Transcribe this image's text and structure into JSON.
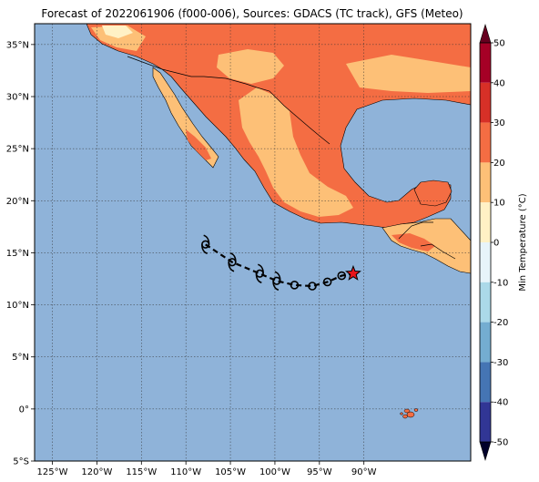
{
  "title": "Forecast of 2022061906 (f000-006), Sources: GDACS (TC track), GFS (Meteo)",
  "map": {
    "lon_range": [
      -127,
      -78
    ],
    "lat_range": [
      -5,
      37
    ],
    "x_ticks": [
      {
        "lon": -125,
        "label": "125°W"
      },
      {
        "lon": -120,
        "label": "120°W"
      },
      {
        "lon": -115,
        "label": "115°W"
      },
      {
        "lon": -110,
        "label": "110°W"
      },
      {
        "lon": -105,
        "label": "105°W"
      },
      {
        "lon": -100,
        "label": "100°W"
      },
      {
        "lon": -95,
        "label": "95°W"
      },
      {
        "lon": -90,
        "label": "90°W"
      }
    ],
    "y_ticks": [
      {
        "lat": 35,
        "label": "35°N"
      },
      {
        "lat": 30,
        "label": "30°N"
      },
      {
        "lat": 25,
        "label": "25°N"
      },
      {
        "lat": 20,
        "label": "20°N"
      },
      {
        "lat": 15,
        "label": "15°N"
      },
      {
        "lat": 10,
        "label": "10°N"
      },
      {
        "lat": 5,
        "label": "5°N"
      },
      {
        "lat": 0,
        "label": "0°"
      },
      {
        "lat": -5,
        "label": "5°S"
      }
    ],
    "grid": true,
    "ocean_color": "#8fb3d9",
    "land_colors": {
      "min_temp_10_20": "#fdc077",
      "min_temp_20_30": "#f46d43",
      "min_temp_0_10": "#fff1c5"
    }
  },
  "track": [
    {
      "lon": -107.8,
      "lat": 15.8,
      "symbol": "tropical-storm-icon"
    },
    {
      "lon": -104.8,
      "lat": 14.1,
      "symbol": "tropical-storm-icon"
    },
    {
      "lon": -101.7,
      "lat": 13.0,
      "symbol": "tropical-storm-icon"
    },
    {
      "lon": -99.8,
      "lat": 12.3,
      "symbol": "tropical-storm-icon"
    },
    {
      "lon": -97.8,
      "lat": 11.9,
      "symbol": "depression-icon"
    },
    {
      "lon": -95.8,
      "lat": 11.8,
      "symbol": "depression-icon"
    },
    {
      "lon": -94.1,
      "lat": 12.2,
      "symbol": "depression-icon"
    },
    {
      "lon": -92.5,
      "lat": 12.8,
      "symbol": "depression-icon"
    },
    {
      "lon": -91.2,
      "lat": 13.0,
      "symbol": "current-position-star-icon"
    }
  ],
  "colorbar": {
    "label": "Min Temperature (°C)",
    "min": -50,
    "max": 50,
    "ticks": [
      "50",
      "40",
      "30",
      "20",
      "10",
      "0",
      "-10",
      "-20",
      "-30",
      "-40",
      "-50"
    ],
    "tick_values": [
      50,
      40,
      30,
      20,
      10,
      0,
      -10,
      -20,
      -30,
      -40,
      -50
    ],
    "bands": [
      {
        "from": 40,
        "to": 50,
        "color": "#a50026"
      },
      {
        "from": 30,
        "to": 40,
        "color": "#d73027"
      },
      {
        "from": 20,
        "to": 30,
        "color": "#f46d43"
      },
      {
        "from": 10,
        "to": 20,
        "color": "#fdc077"
      },
      {
        "from": 0,
        "to": 10,
        "color": "#fff1c5"
      },
      {
        "from": -10,
        "to": 0,
        "color": "#e7f4fa"
      },
      {
        "from": -20,
        "to": -10,
        "color": "#abd9e9"
      },
      {
        "from": -30,
        "to": -20,
        "color": "#74add1"
      },
      {
        "from": -40,
        "to": -30,
        "color": "#4575b4"
      },
      {
        "from": -50,
        "to": -40,
        "color": "#313695"
      }
    ]
  }
}
